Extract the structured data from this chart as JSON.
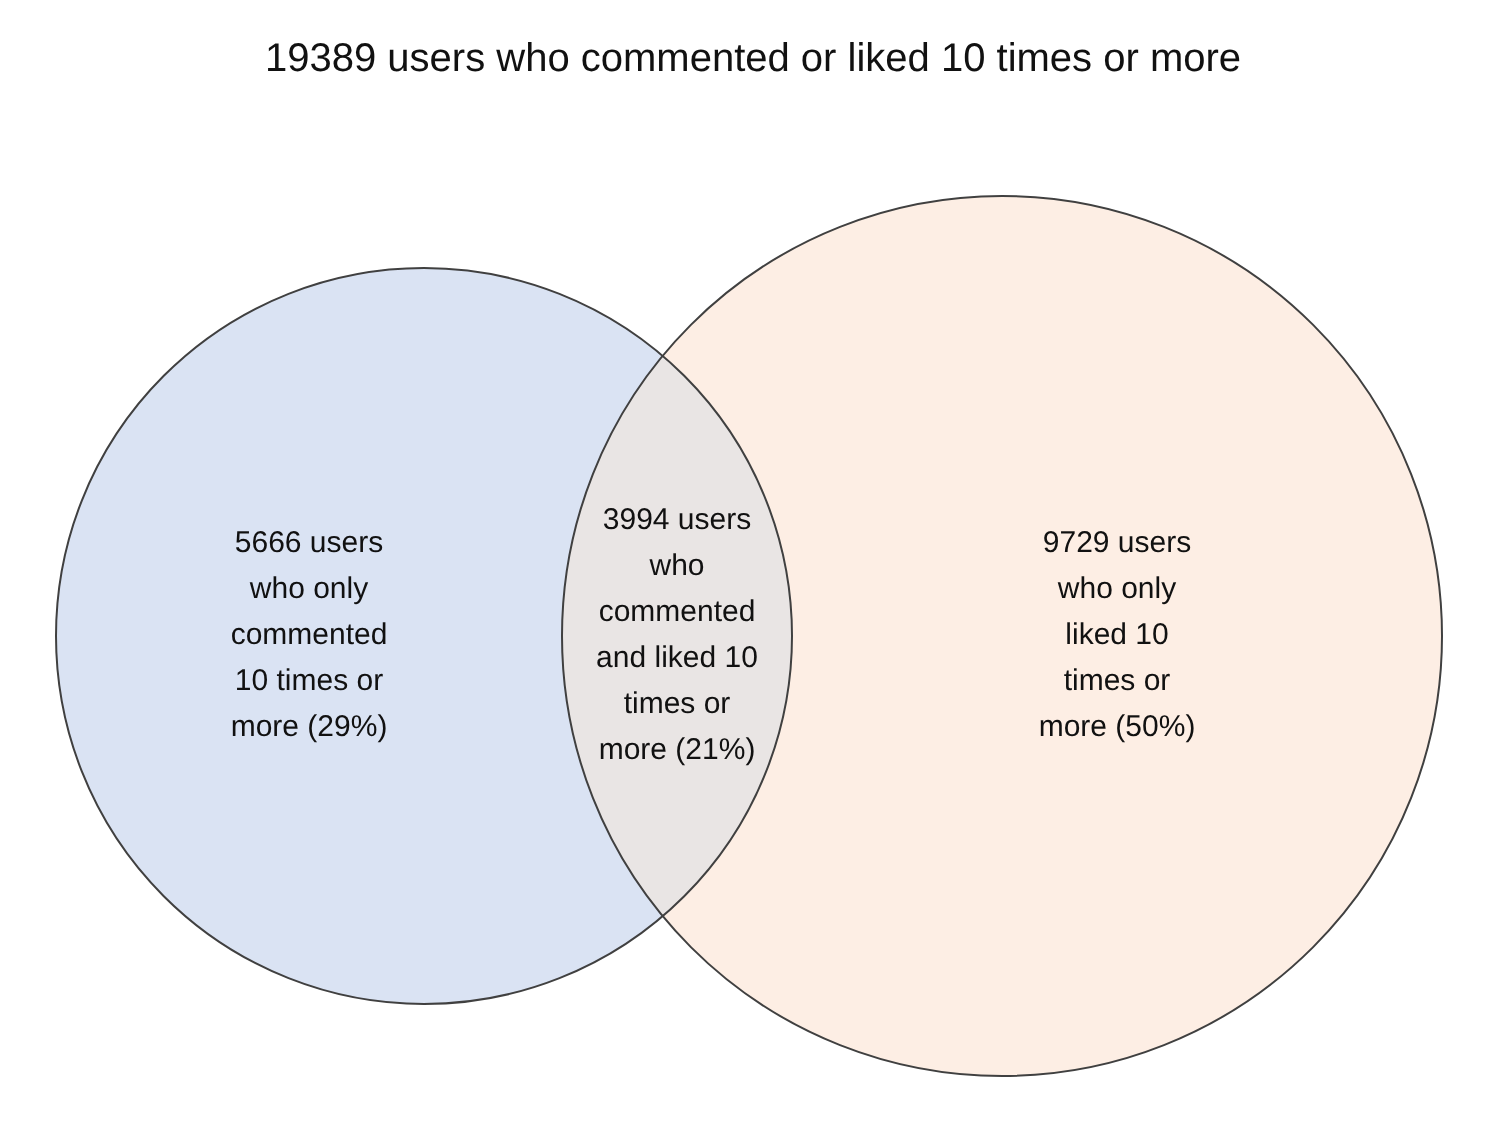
{
  "chart_data": {
    "type": "other",
    "title": "19389 users who commented or liked 10 times or more",
    "categories": [
      "users who only commented 10 times or more (29%)",
      "users who commented and liked 10 times or more (21%)",
      "users who only liked 10 times or more (50%)"
    ],
    "values": [
      5666,
      3994,
      9729
    ],
    "data_labels": true,
    "colors": [
      "#dae3f3",
      "#e9e5e4",
      "#fdeee4"
    ]
  }
}
